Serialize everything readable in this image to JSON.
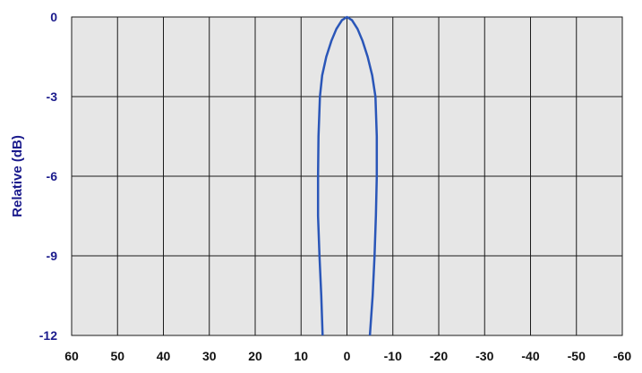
{
  "chart_data": {
    "type": "line",
    "title": "",
    "xlabel": "",
    "ylabel": "Relative (dB)",
    "xlim": [
      60,
      -60
    ],
    "ylim": [
      -12,
      0
    ],
    "grid": true,
    "x_ticks": [
      "60",
      "50",
      "40",
      "30",
      "20",
      "10",
      "0",
      "-10",
      "-20",
      "-30",
      "-40",
      "-50",
      "-60"
    ],
    "y_ticks": [
      "0",
      "-3",
      "-6",
      "-9",
      "-12"
    ],
    "series": [
      {
        "x": [
          5.3,
          5.6,
          6.0,
          6.3,
          6.3,
          6.2,
          5.9,
          5.4,
          4.5,
          3.4,
          2.3,
          1.1,
          0,
          -1.1,
          -2.3,
          -3.4,
          -4.5,
          -5.5,
          -6.2,
          -6.5,
          -6.5,
          -6.3,
          -6.0,
          -5.6,
          -5.0
        ],
        "y": [
          -12,
          -10.5,
          -9,
          -7.5,
          -6,
          -4.5,
          -3,
          -2.2,
          -1.5,
          -0.9,
          -0.45,
          -0.12,
          0,
          -0.12,
          -0.45,
          -0.9,
          -1.5,
          -2.2,
          -3,
          -4.5,
          -6,
          -7.5,
          -9,
          -10.5,
          -12
        ]
      }
    ],
    "colors": {
      "axis_text": "#1a1a8c",
      "series": "#2a56b8",
      "plot_bg": "#e6e6e6",
      "grid": "#1a1a1a"
    }
  }
}
